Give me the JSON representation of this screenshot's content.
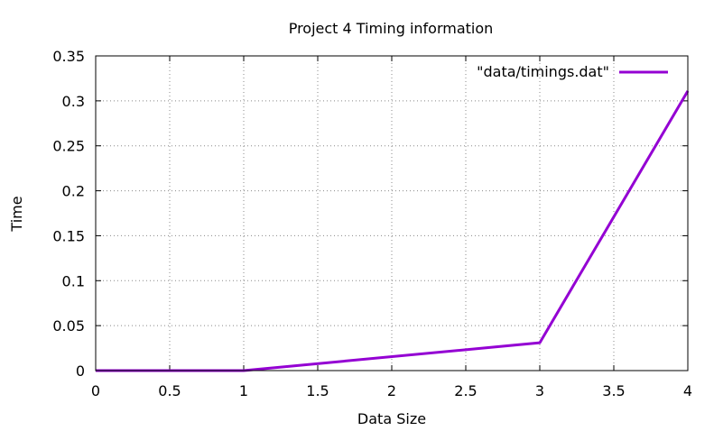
{
  "chart_data": {
    "type": "line",
    "title": "Project 4 Timing information",
    "xlabel": "Data Size",
    "ylabel": "Time",
    "xlim": [
      0,
      4
    ],
    "ylim": [
      0,
      0.35
    ],
    "xticks": [
      0,
      0.5,
      1,
      1.5,
      2,
      2.5,
      3,
      3.5,
      4
    ],
    "xtick_labels": [
      "0",
      "0.5",
      "1",
      "1.5",
      "2",
      "2.5",
      "3",
      "3.5",
      "4"
    ],
    "yticks": [
      0,
      0.05,
      0.1,
      0.15,
      0.2,
      0.25,
      0.3,
      0.35
    ],
    "ytick_labels": [
      "0",
      "0.05",
      "0.1",
      "0.15",
      "0.2",
      "0.25",
      "0.3",
      "0.35"
    ],
    "grid": true,
    "legend_position": "top-right",
    "series": [
      {
        "name": "\"data/timings.dat\"",
        "color": "#9400d3",
        "x": [
          0,
          1,
          3,
          4
        ],
        "y": [
          0,
          0,
          0.031,
          0.311
        ]
      }
    ]
  }
}
